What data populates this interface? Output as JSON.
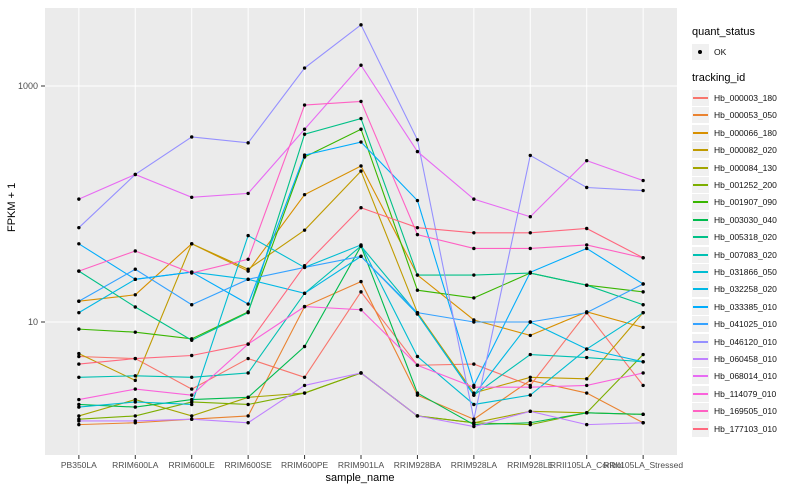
{
  "chart_data": {
    "type": "line",
    "title": "",
    "xlabel": "sample_name",
    "ylabel": "FPKM + 1",
    "y_scale": "log10",
    "y_ticks": [
      10,
      1000
    ],
    "ylim": [
      1,
      4500
    ],
    "grid": "white major gridlines on gray panel",
    "legend_position": "right",
    "point_marker": "small black point (quant_status OK)",
    "x_categories": [
      "PB350LA",
      "RRIM600LA",
      "RRIM600LE",
      "RRIM600SE",
      "RRIM600PE",
      "RRIM901LA",
      "RRIM928BA",
      "RRIM928LA",
      "RRIM928LE",
      "RRII105LA_Control",
      "RRII105LA_Stressed"
    ],
    "legend": {
      "quant_status_title": "quant_status",
      "quant_status_items": [
        "OK"
      ],
      "tracking_id_title": "tracking_id"
    },
    "series": [
      {
        "name": "Hb_000003_180",
        "color": "#F8766D",
        "values": [
          5.1,
          4.9,
          2.7,
          4.9,
          3.4,
          18,
          4.3,
          4.4,
          2.9,
          12,
          2.9
        ]
      },
      {
        "name": "Hb_000053_050",
        "color": "#EA8331",
        "values": [
          1.35,
          1.4,
          1.5,
          1.6,
          13.5,
          22,
          2.4,
          1.5,
          3.2,
          2.5,
          1.4
        ]
      },
      {
        "name": "Hb_000066_180",
        "color": "#D89000",
        "values": [
          15,
          17,
          46,
          27,
          120,
          210,
          25,
          10.4,
          7.7,
          12.2,
          9
        ]
      },
      {
        "name": "Hb_000082_020",
        "color": "#C09B00",
        "values": [
          5.4,
          3.2,
          46,
          28,
          60,
          190,
          12,
          2.5,
          3.4,
          3.3,
          12
        ]
      },
      {
        "name": "Hb_000084_130",
        "color": "#A3A500",
        "values": [
          1.6,
          2.2,
          1.6,
          2.3,
          2.5,
          3.7,
          1.6,
          1.4,
          1.75,
          1.7,
          1.65
        ]
      },
      {
        "name": "Hb_001252_200",
        "color": "#7CAE00",
        "values": [
          1.5,
          1.6,
          2.1,
          2.0,
          2.5,
          3.7,
          1.6,
          1.4,
          1.35,
          1.7,
          5.3
        ]
      },
      {
        "name": "Hb_001907_090",
        "color": "#39B600",
        "values": [
          8.7,
          8.2,
          7.2,
          12.2,
          250,
          430,
          18.6,
          16,
          26,
          20.5,
          18
        ]
      },
      {
        "name": "Hb_003030_040",
        "color": "#00BB4E",
        "values": [
          2.0,
          1.9,
          2.2,
          2.3,
          6.2,
          44,
          2.5,
          1.35,
          1.4,
          1.7,
          1.65
        ]
      },
      {
        "name": "Hb_005318_020",
        "color": "#00C087",
        "values": [
          27,
          13.4,
          7.0,
          12,
          390,
          530,
          25,
          25,
          26,
          20.5,
          14
        ]
      },
      {
        "name": "Hb_007083_020",
        "color": "#00C0B2",
        "values": [
          3.4,
          3.5,
          3.4,
          3.7,
          17.5,
          44,
          11.7,
          2.4,
          5.3,
          5.0,
          4.6
        ]
      },
      {
        "name": "Hb_031866_050",
        "color": "#00BDD2",
        "values": [
          1.9,
          2.1,
          2.0,
          54,
          29,
          45,
          5.1,
          2.0,
          2.4,
          5.9,
          12
        ]
      },
      {
        "name": "Hb_032258_020",
        "color": "#00B8E5",
        "values": [
          12,
          23,
          26.5,
          23,
          17.5,
          36,
          11.7,
          2.4,
          10,
          5.9,
          4.6
        ]
      },
      {
        "name": "Hb_033385_010",
        "color": "#00ACFC",
        "values": [
          46,
          23,
          26.5,
          14.2,
          260,
          335,
          107,
          2.9,
          26.4,
          42,
          21
        ]
      },
      {
        "name": "Hb_041025_010",
        "color": "#35A2FF",
        "values": [
          15,
          28,
          14,
          23,
          29,
          36,
          12,
          10,
          10,
          12,
          21
        ]
      },
      {
        "name": "Hb_046120_010",
        "color": "#9590FF",
        "values": [
          63,
          178,
          370,
          330,
          1420,
          3300,
          350,
          1.5,
          258,
          138,
          130
        ]
      },
      {
        "name": "Hb_060458_010",
        "color": "#BF80FF",
        "values": [
          1.45,
          1.45,
          1.5,
          1.4,
          2.9,
          3.7,
          1.6,
          1.3,
          1.75,
          1.35,
          1.4
        ]
      },
      {
        "name": "Hb_068014_010",
        "color": "#E76BF3",
        "values": [
          110,
          178,
          114,
          123,
          430,
          1500,
          278,
          110,
          78,
          233,
          158
        ]
      },
      {
        "name": "Hb_114079_010",
        "color": "#FA62DB",
        "values": [
          2.2,
          2.7,
          2.4,
          6.5,
          13.5,
          12.7,
          4.3,
          2.8,
          2.8,
          2.9,
          3.7
        ]
      },
      {
        "name": "Hb_169505_010",
        "color": "#FF61C3",
        "values": [
          27,
          40,
          26,
          34,
          690,
          740,
          55,
          42,
          42,
          45,
          35
        ]
      },
      {
        "name": "Hb_177103_010",
        "color": "#FF687E",
        "values": [
          4.4,
          4.9,
          5.2,
          6.5,
          30,
          93,
          63,
          57,
          57,
          62,
          35
        ]
      }
    ]
  },
  "colors": {
    "panel_bg": "#EBEBEB",
    "gridline": "#FFFFFF",
    "point": "#000000",
    "axis_text": "#4D4D4D",
    "tick_mark": "#333333",
    "legend_key_bg": "#F0F0F0"
  }
}
